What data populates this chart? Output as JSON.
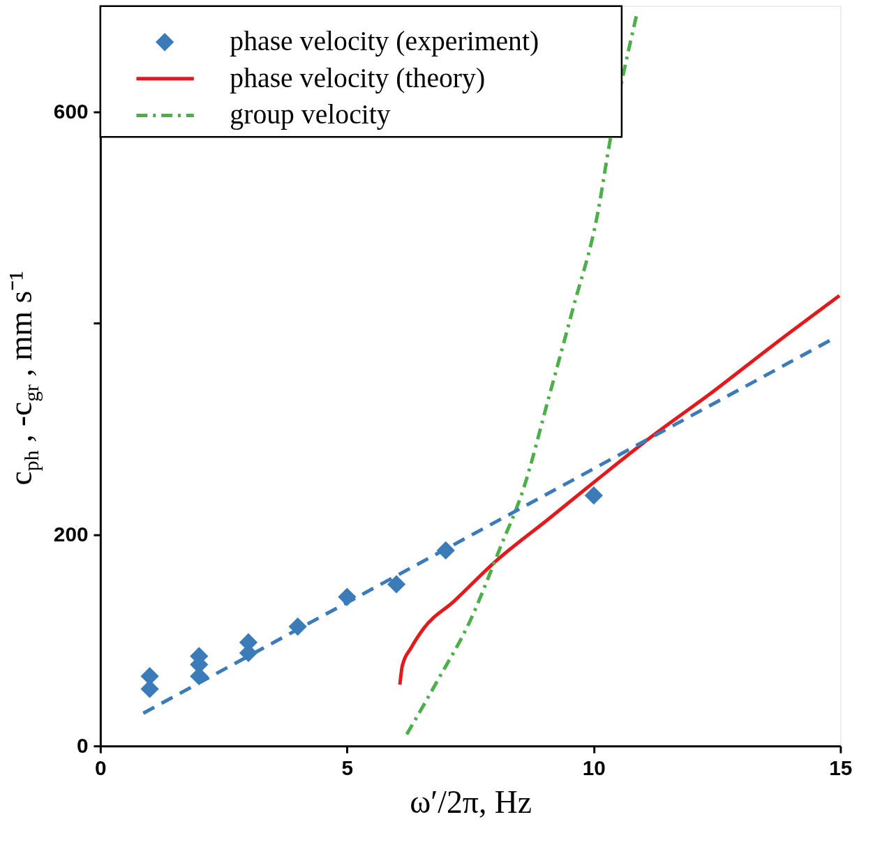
{
  "chart_data": {
    "type": "line",
    "xlabel": "ω′/2π, Hz",
    "ylabel": "c$_{ph}$ , -c$_{gr}$ , mm s⁻¹",
    "xlim": [
      0,
      15
    ],
    "xticks": [
      0,
      5,
      10,
      15
    ],
    "ylim": [
      0,
      700
    ],
    "yticks": [
      0,
      200,
      {
        "value": 400,
        "label": null
      },
      600
    ],
    "grid": false,
    "legend": "top left",
    "series": [
      {
        "name": "phase velocity (experiment)",
        "type": "scatter",
        "marker": "diamond",
        "color": "#3a7bb8",
        "x": [
          1,
          1,
          2,
          2,
          2,
          3,
          3,
          4,
          5,
          6,
          7,
          10
        ],
        "values": [
          66,
          54,
          85,
          77,
          66,
          98,
          88,
          113,
          141,
          153,
          185,
          237
        ]
      },
      {
        "name": "phase velocity (theory)",
        "line_style": "solid",
        "color": "#e31a1c",
        "x": [
          6.07,
          6.12,
          6.3,
          6.55,
          7.17,
          7.97,
          9.09,
          10.07,
          11.18,
          12.41,
          13.66,
          14.98
        ],
        "values": [
          58,
          76,
          93,
          111,
          137,
          173,
          215,
          252,
          293,
          335,
          380,
          426
        ]
      },
      {
        "name": "group velocity",
        "line_style": "dashdot",
        "color": "#4daf4a",
        "x": [
          6.21,
          6.86,
          7.48,
          8.09,
          8.58,
          9.09,
          9.58,
          10.08,
          10.32,
          10.88
        ],
        "values": [
          11,
          64,
          117,
          186,
          244,
          330,
          414,
          504,
          570,
          694
        ]
      },
      {
        "line_style": "dashed",
        "color": "#3a7bb8",
        "x": [
          0.87,
          14.88
        ],
        "values": [
          31,
          386
        ]
      }
    ]
  }
}
